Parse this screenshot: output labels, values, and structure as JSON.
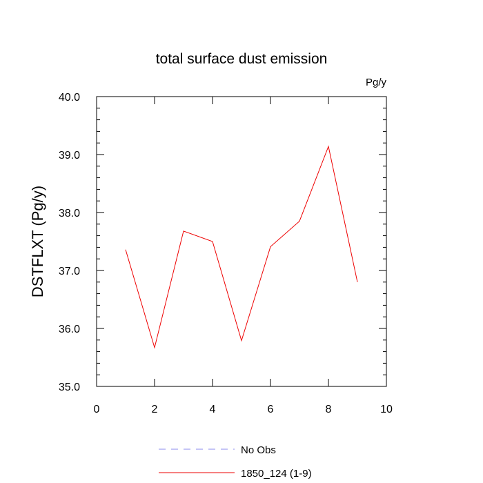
{
  "chart_data": {
    "type": "line",
    "title": "total surface dust emission",
    "units_label": "Pg/y",
    "ylabel": "DSTFLXT  (Pg/y)",
    "xlabel": "",
    "xlim": [
      0,
      10
    ],
    "ylim": [
      35,
      40
    ],
    "x_ticks": [
      0,
      2,
      4,
      6,
      8,
      10
    ],
    "x_tick_labels": [
      "0",
      "2",
      "4",
      "6",
      "8",
      "10"
    ],
    "y_ticks": [
      35,
      36,
      37,
      38,
      39,
      40
    ],
    "y_tick_labels": [
      "35.0",
      "36.0",
      "37.0",
      "38.0",
      "39.0",
      "40.0"
    ],
    "grid": false,
    "legend_position": "bottom",
    "series": [
      {
        "name": "No Obs",
        "color": "#8888ee",
        "style": "dashed",
        "x": [],
        "y": []
      },
      {
        "name": "1850_124 (1-9)",
        "color": "#ee0000",
        "style": "solid",
        "x": [
          1,
          2,
          3,
          4,
          5,
          6,
          7,
          8,
          9
        ],
        "y": [
          37.36,
          35.67,
          37.68,
          37.5,
          35.79,
          37.41,
          37.85,
          39.14,
          36.8
        ]
      }
    ]
  }
}
